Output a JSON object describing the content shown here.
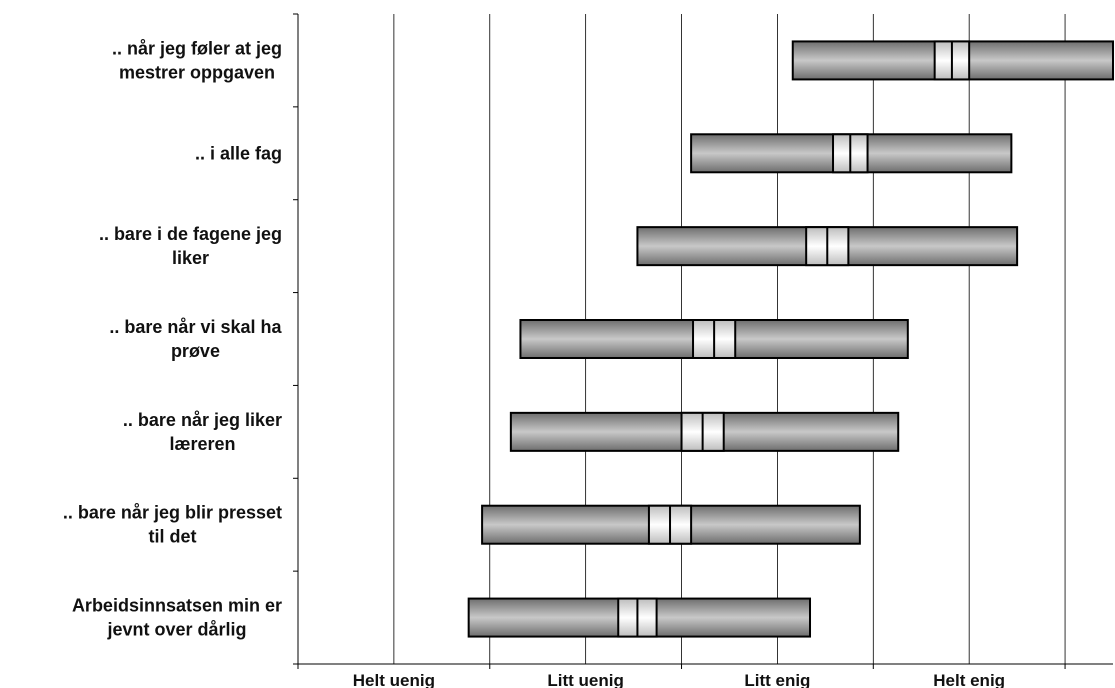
{
  "chart_data": {
    "type": "boxplot",
    "title": "",
    "xlabel": "",
    "ylabel": "",
    "x_scale": {
      "min": 0.5,
      "max": 4.75,
      "ticks": [
        {
          "value": 1,
          "label": "Helt uenig"
        },
        {
          "value": 2,
          "label": "Litt uenig"
        },
        {
          "value": 3,
          "label": "Litt enig"
        },
        {
          "value": 4,
          "label": "Helt enig"
        }
      ],
      "minor_ticks": [
        0.5,
        1.5,
        2.5,
        3.5,
        4.5
      ]
    },
    "grid": {
      "vertical": true,
      "horizontal": false
    },
    "legend": "none",
    "colors": {
      "bar_dark": "#6e6e6e",
      "bar_light": "#c8c8c8",
      "median_dark": "#bdbdbd",
      "median_light": "#ffffff",
      "outline": "#000000",
      "grid": "#000000"
    },
    "categories": [
      {
        "label_lines": [
          ".. når jeg føler at jeg",
          "mestrer oppgaven"
        ],
        "low": 3.08,
        "high": 4.75,
        "ci_low": 3.82,
        "mean": 3.91,
        "ci_high": 4.0
      },
      {
        "label_lines": [
          ".. i alle fag"
        ],
        "low": 2.55,
        "high": 4.22,
        "ci_low": 3.29,
        "mean": 3.38,
        "ci_high": 3.47
      },
      {
        "label_lines": [
          ".. bare i de fagene jeg",
          "liker"
        ],
        "low": 2.27,
        "high": 4.25,
        "ci_low": 3.15,
        "mean": 3.26,
        "ci_high": 3.37
      },
      {
        "label_lines": [
          ".. bare når vi skal ha",
          "prøve"
        ],
        "low": 1.66,
        "high": 3.68,
        "ci_low": 2.56,
        "mean": 2.67,
        "ci_high": 2.78
      },
      {
        "label_lines": [
          ".. bare når jeg liker",
          "læreren"
        ],
        "low": 1.61,
        "high": 3.63,
        "ci_low": 2.5,
        "mean": 2.61,
        "ci_high": 2.72
      },
      {
        "label_lines": [
          ".. bare når jeg blir presset",
          "til det"
        ],
        "low": 1.46,
        "high": 3.43,
        "ci_low": 2.33,
        "mean": 2.44,
        "ci_high": 2.55
      },
      {
        "label_lines": [
          "Arbeidsinnsatsen min er",
          "jevnt over dårlig"
        ],
        "low": 1.39,
        "high": 3.17,
        "ci_low": 2.17,
        "mean": 2.27,
        "ci_high": 2.37
      }
    ]
  }
}
